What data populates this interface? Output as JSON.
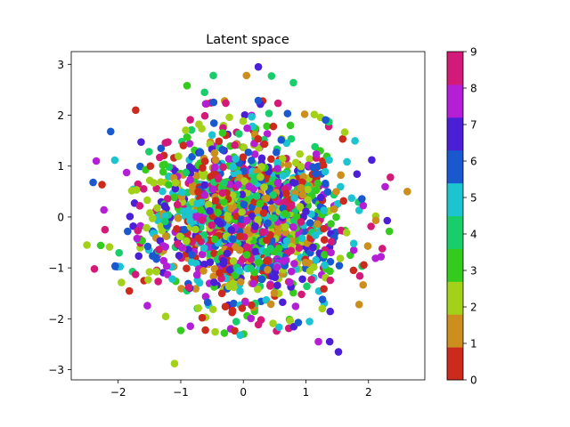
{
  "chart_data": {
    "type": "scatter",
    "title": "Latent space",
    "xlabel": "",
    "ylabel": "",
    "xlim": [
      -2.75,
      2.9
    ],
    "ylim": [
      -3.2,
      3.25
    ],
    "xticks": [
      -2,
      -1,
      0,
      1,
      2
    ],
    "yticks": [
      -3,
      -2,
      -1,
      0,
      1,
      2,
      3
    ],
    "grid": false,
    "colorbar": {
      "min": 0,
      "max": 9,
      "ticks": [
        0,
        1,
        2,
        3,
        4,
        5,
        6,
        7,
        8,
        9
      ],
      "colors": [
        "#cc2a1d",
        "#cc8e1c",
        "#a3d11a",
        "#35cb1e",
        "#17ce6a",
        "#1cc4cf",
        "#1a58cf",
        "#4a1fd6",
        "#b41fd6",
        "#d41a78"
      ]
    },
    "points": [
      {
        "x": -1.1,
        "y": -2.88,
        "label": 2
      },
      {
        "x": 0.24,
        "y": 2.95,
        "label": 7
      },
      {
        "x": 0.05,
        "y": 2.78,
        "label": 1
      },
      {
        "x": 0.45,
        "y": 2.77,
        "label": 4
      },
      {
        "x": -0.48,
        "y": 2.78,
        "label": 4
      },
      {
        "x": -0.9,
        "y": 2.58,
        "label": 3
      },
      {
        "x": 0.8,
        "y": 2.64,
        "label": 4
      },
      {
        "x": -2.12,
        "y": 1.68,
        "label": 6
      },
      {
        "x": -2.35,
        "y": 1.1,
        "label": 8
      },
      {
        "x": -2.4,
        "y": 0.68,
        "label": 6
      },
      {
        "x": 2.62,
        "y": 0.5,
        "label": 1
      },
      {
        "x": 2.2,
        "y": -0.78,
        "label": 8
      },
      {
        "x": -2.5,
        "y": -0.55,
        "label": 2
      },
      {
        "x": 1.52,
        "y": -2.65,
        "label": 7
      },
      {
        "x": 1.38,
        "y": -2.45,
        "label": 7
      },
      {
        "x": 1.2,
        "y": -2.45,
        "label": 8
      },
      {
        "x": -1.0,
        "y": -2.23,
        "label": 3
      },
      {
        "x": -0.05,
        "y": -2.32,
        "label": 5
      },
      {
        "x": 1.85,
        "y": -1.72,
        "label": 1
      },
      {
        "x": 2.35,
        "y": 0.78,
        "label": 9
      },
      {
        "x": -2.38,
        "y": -1.02,
        "label": 9
      },
      {
        "x": -0.62,
        "y": 2.45,
        "label": 4
      },
      {
        "x": 0.98,
        "y": 2.02,
        "label": 1
      },
      {
        "x": -1.72,
        "y": 2.1,
        "label": 0
      }
    ],
    "cluster_seed": 12345,
    "cluster_size": 1500,
    "cluster_sd": [
      0.8,
      0.85
    ]
  }
}
